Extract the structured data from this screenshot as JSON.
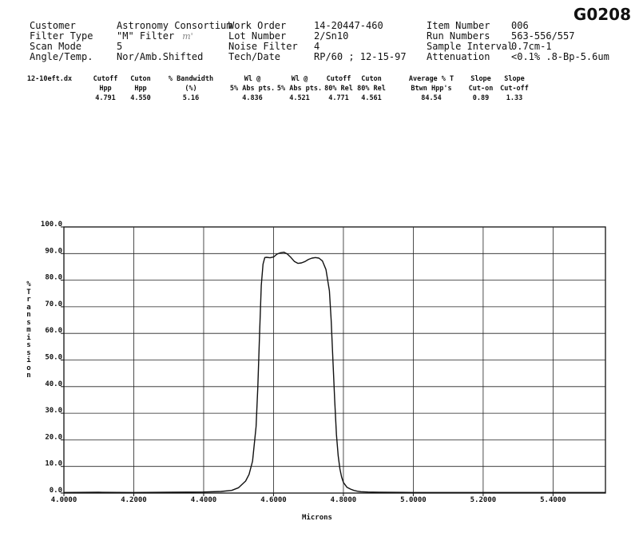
{
  "doc_code": "G0208",
  "header": {
    "labels_1": [
      "Customer",
      "Filter Type",
      "Scan Mode",
      "Angle/Temp."
    ],
    "values_1": [
      "Astronomy Consortium",
      "\"M\" Filter",
      "5",
      "Nor/Amb.Shifted"
    ],
    "handwritten_note": "m'",
    "labels_2": [
      "Work Order",
      "Lot Number",
      "Noise Filter",
      "Tech/Date"
    ],
    "values_2": [
      "14-20447-460",
      "2/Sn10",
      "4",
      "RP/60 ; 12-15-97"
    ],
    "labels_3": [
      "Item Number",
      "Run Numbers",
      "Sample Interval",
      "Attenuation"
    ],
    "values_3": [
      "006",
      "563-556/557",
      "0.7cm-1",
      "<0.1% .8-Bp-5.6um"
    ]
  },
  "stats": {
    "file": "12-10eft.dx",
    "columns": [
      {
        "h1": "Cutoff",
        "h2": "Hpp",
        "v": "4.791"
      },
      {
        "h1": "Cuton",
        "h2": "Hpp",
        "v": "4.550"
      },
      {
        "h1": "% Bandwidth",
        "h2": "(%)",
        "v": "5.16"
      },
      {
        "h1": "Wl @",
        "h2": "5% Abs pts.",
        "v": "4.836"
      },
      {
        "h1": "Wl @",
        "h2": "5% Abs pts.",
        "v": "4.521"
      },
      {
        "h1": "Cutoff",
        "h2": "80% Rel",
        "v": "4.771"
      },
      {
        "h1": "Cuton",
        "h2": "80% Rel",
        "v": "4.561"
      },
      {
        "h1": "Average % T",
        "h2": "Btwn Hpp's",
        "v": "84.54"
      },
      {
        "h1": "Slope",
        "h2": "Cut-on",
        "v": "0.89"
      },
      {
        "h1": "Slope",
        "h2": "Cut-off",
        "v": "1.33"
      }
    ]
  },
  "chart_data": {
    "type": "line",
    "xlabel": "Microns",
    "ylabel": "% Transmission",
    "xlim": [
      4.0,
      5.55
    ],
    "ylim": [
      0,
      100
    ],
    "x_ticks": [
      "4.0000",
      "4.2000",
      "4.4000",
      "4.6000",
      "4.8000",
      "5.0000",
      "5.2000",
      "5.4000"
    ],
    "y_ticks": [
      "0.0",
      "10.0",
      "20.0",
      "30.0",
      "40.0",
      "50.0",
      "60.0",
      "70.0",
      "80.0",
      "90.0",
      "100.0"
    ],
    "grid": true,
    "line_color": "#111111",
    "series": [
      {
        "x": [
          4.0,
          4.1,
          4.2,
          4.3,
          4.4,
          4.45,
          4.48,
          4.5,
          4.52,
          4.53,
          4.54,
          4.55,
          4.555,
          4.56,
          4.565,
          4.57,
          4.575,
          4.58,
          4.59,
          4.6,
          4.61,
          4.62,
          4.63,
          4.64,
          4.65,
          4.66,
          4.67,
          4.68,
          4.69,
          4.7,
          4.71,
          4.72,
          4.73,
          4.74,
          4.75,
          4.76,
          4.765,
          4.77,
          4.775,
          4.78,
          4.785,
          4.79,
          4.795,
          4.8,
          4.81,
          4.82,
          4.83,
          4.84,
          4.85,
          4.87,
          4.9,
          5.0,
          5.1,
          5.2,
          5.3,
          5.4,
          5.55
        ],
        "y": [
          0.2,
          0.3,
          0.2,
          0.3,
          0.4,
          0.6,
          1.0,
          2.0,
          4.5,
          7.0,
          12.0,
          25.0,
          40.0,
          60.0,
          78.0,
          86.0,
          88.5,
          88.6,
          88.4,
          88.7,
          89.8,
          90.3,
          90.5,
          89.8,
          88.5,
          87.0,
          86.3,
          86.5,
          87.0,
          87.8,
          88.3,
          88.5,
          88.3,
          87.2,
          84.0,
          76.0,
          65.0,
          50.0,
          35.0,
          22.0,
          14.0,
          9.0,
          6.0,
          4.0,
          2.2,
          1.5,
          1.0,
          0.7,
          0.5,
          0.4,
          0.3,
          0.2,
          0.2,
          0.2,
          0.2,
          0.2,
          0.2
        ]
      }
    ]
  }
}
